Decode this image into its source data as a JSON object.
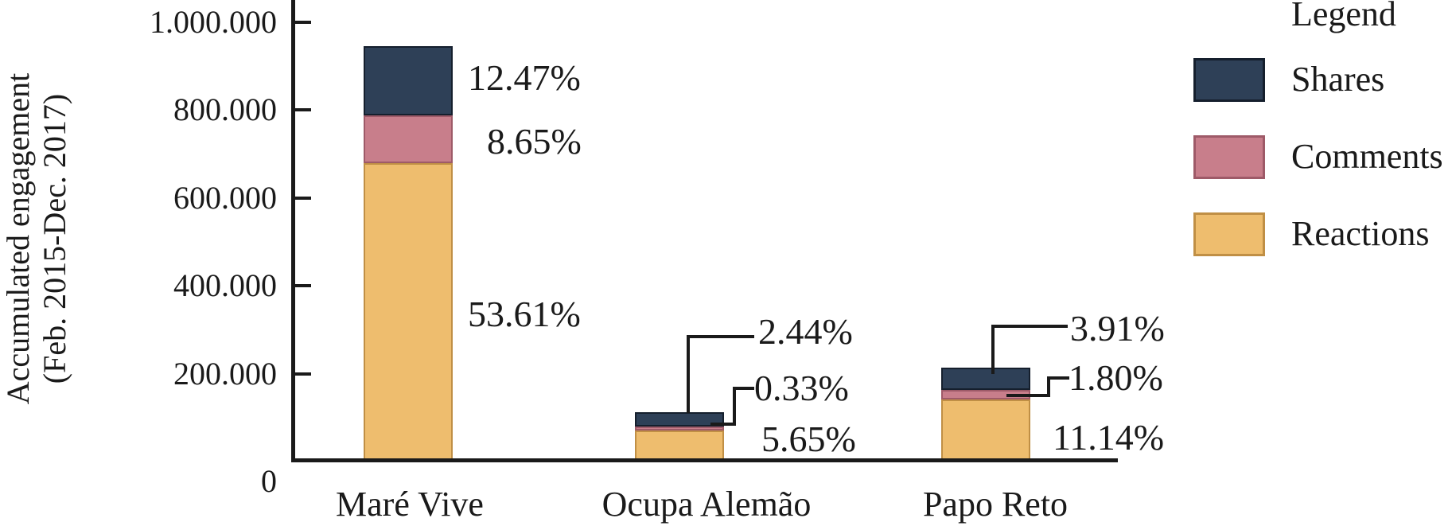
{
  "y_axis": {
    "title_line1": "Accumulated engagement",
    "title_line2": "(Feb. 2015-Dec. 2017)",
    "tick_labels": [
      "1.000.000",
      "800.000",
      "600.000",
      "400.000",
      "200.000",
      "0"
    ],
    "tick_values": [
      1000000,
      800000,
      600000,
      400000,
      200000,
      0
    ]
  },
  "legend": {
    "title": "Legend",
    "items": [
      {
        "label": "Shares",
        "color": "#2e4057",
        "border": "#151f2d"
      },
      {
        "label": "Comments",
        "color": "#c87e8b",
        "border": "#9e5a68"
      },
      {
        "label": "Reactions",
        "color": "#eebd6e",
        "border": "#c08f45"
      }
    ]
  },
  "chart_data": {
    "type": "bar",
    "stacked": true,
    "title": "",
    "xlabel": "",
    "ylabel": "Accumulated engagement (Feb. 2015-Dec. 2017)",
    "ylim": [
      0,
      1050000
    ],
    "grid": false,
    "legend_position": "right",
    "categories": [
      "Maré Vive",
      "Ocupa Alemão",
      "Papo Reto"
    ],
    "series": [
      {
        "name": "Reactions",
        "color": "#eebd6e",
        "values": [
          678500,
          71500,
          141000
        ],
        "pct_labels": [
          "53.61%",
          "5.65%",
          "11.14%"
        ]
      },
      {
        "name": "Comments",
        "color": "#c87e8b",
        "values": [
          109500,
          4200,
          22800
        ],
        "pct_labels": [
          "8.65%",
          "0.33%",
          "1.80%"
        ]
      },
      {
        "name": "Shares",
        "color": "#2e4057",
        "values": [
          157800,
          30900,
          49500
        ],
        "pct_labels": [
          "12.47%",
          "2.44%",
          "3.91%"
        ]
      }
    ]
  }
}
